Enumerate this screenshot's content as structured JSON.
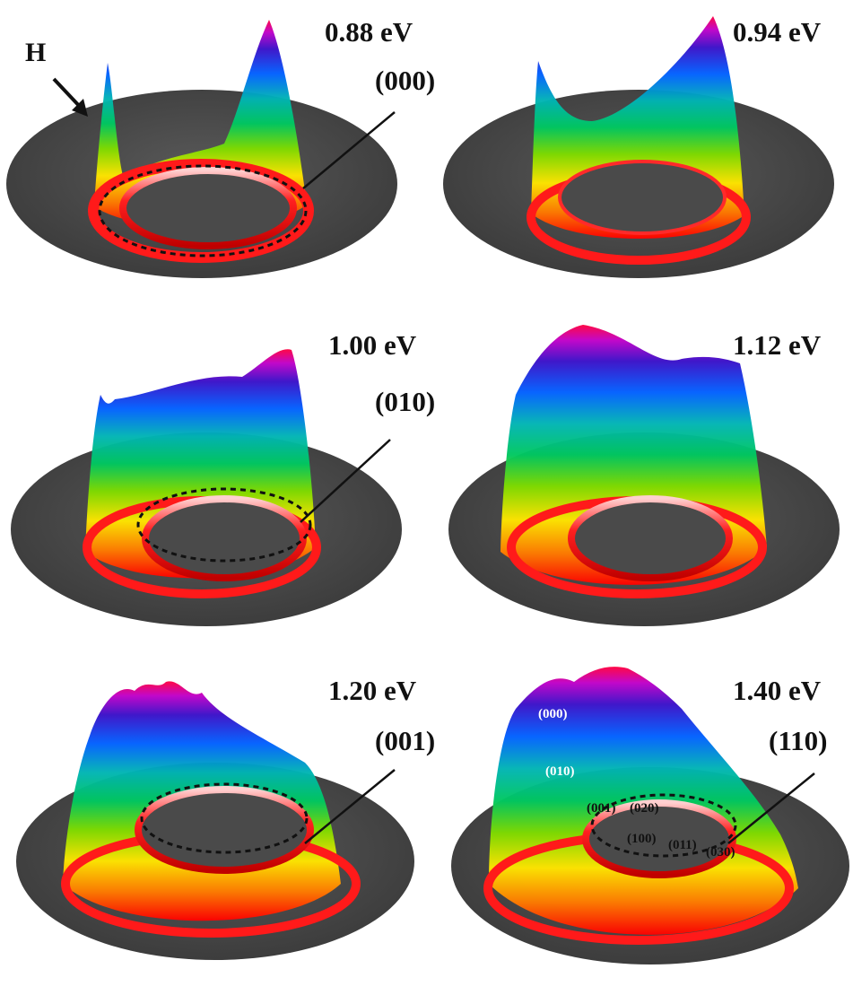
{
  "figure": {
    "field_label": "H",
    "panels": [
      {
        "energy": "0.88 eV",
        "state": "(000)"
      },
      {
        "energy": "0.94 eV",
        "state": ""
      },
      {
        "energy": "1.00 eV",
        "state": "(010)"
      },
      {
        "energy": "1.12 eV",
        "state": ""
      },
      {
        "energy": "1.20 eV",
        "state": "(001)"
      },
      {
        "energy": "1.40 eV",
        "state": "(110)",
        "inner_labels": [
          "(000)",
          "(010)",
          "(001)",
          "(020)",
          "(100)",
          "(011)",
          "(030)"
        ]
      }
    ],
    "colors": {
      "plate": "#4a4a4a",
      "ring": "#ff1a1a",
      "gradient": [
        "#ff0000",
        "#ff8800",
        "#ffee00",
        "#66dd00",
        "#00cc66",
        "#00bbbb",
        "#0066ff",
        "#3300cc",
        "#cc00cc",
        "#ff0044"
      ]
    }
  }
}
